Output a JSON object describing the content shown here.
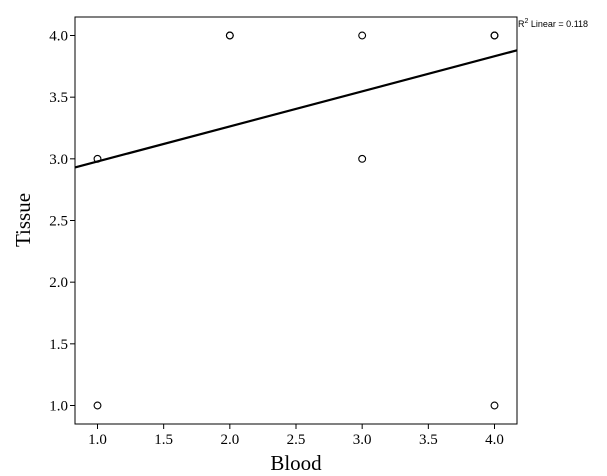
{
  "chart_data": {
    "type": "scatter",
    "xlabel": "Blood",
    "ylabel": "Tissue",
    "xlim": [
      0.83,
      4.17
    ],
    "ylim": [
      0.85,
      4.15
    ],
    "xticks": [
      "1.0",
      "1.5",
      "2.0",
      "2.5",
      "3.0",
      "3.5",
      "4.0"
    ],
    "xtick_values": [
      1.0,
      1.5,
      2.0,
      2.5,
      3.0,
      3.5,
      4.0
    ],
    "yticks": [
      "1.0",
      "1.5",
      "2.0",
      "2.5",
      "3.0",
      "3.5",
      "4.0"
    ],
    "ytick_values": [
      1.0,
      1.5,
      2.0,
      2.5,
      3.0,
      3.5,
      4.0
    ],
    "points": [
      {
        "x": 1.0,
        "y": 3.0
      },
      {
        "x": 1.0,
        "y": 1.0
      },
      {
        "x": 2.0,
        "y": 4.0
      },
      {
        "x": 2.0,
        "y": 4.0
      },
      {
        "x": 3.0,
        "y": 4.0
      },
      {
        "x": 3.0,
        "y": 3.0
      },
      {
        "x": 4.0,
        "y": 4.0
      },
      {
        "x": 4.0,
        "y": 4.0
      },
      {
        "x": 4.0,
        "y": 1.0
      }
    ],
    "fit_line": {
      "type": "linear",
      "x_start": 0.83,
      "y_start": 2.93,
      "x_end": 4.17,
      "y_end": 3.88
    },
    "annotation": {
      "r2_prefix": "R",
      "r2_sup": "2",
      "r2_text": " Linear = 0.118"
    },
    "grid": false,
    "colors": {
      "marker": "#000000",
      "line": "#000000",
      "frame": "#000000"
    }
  }
}
